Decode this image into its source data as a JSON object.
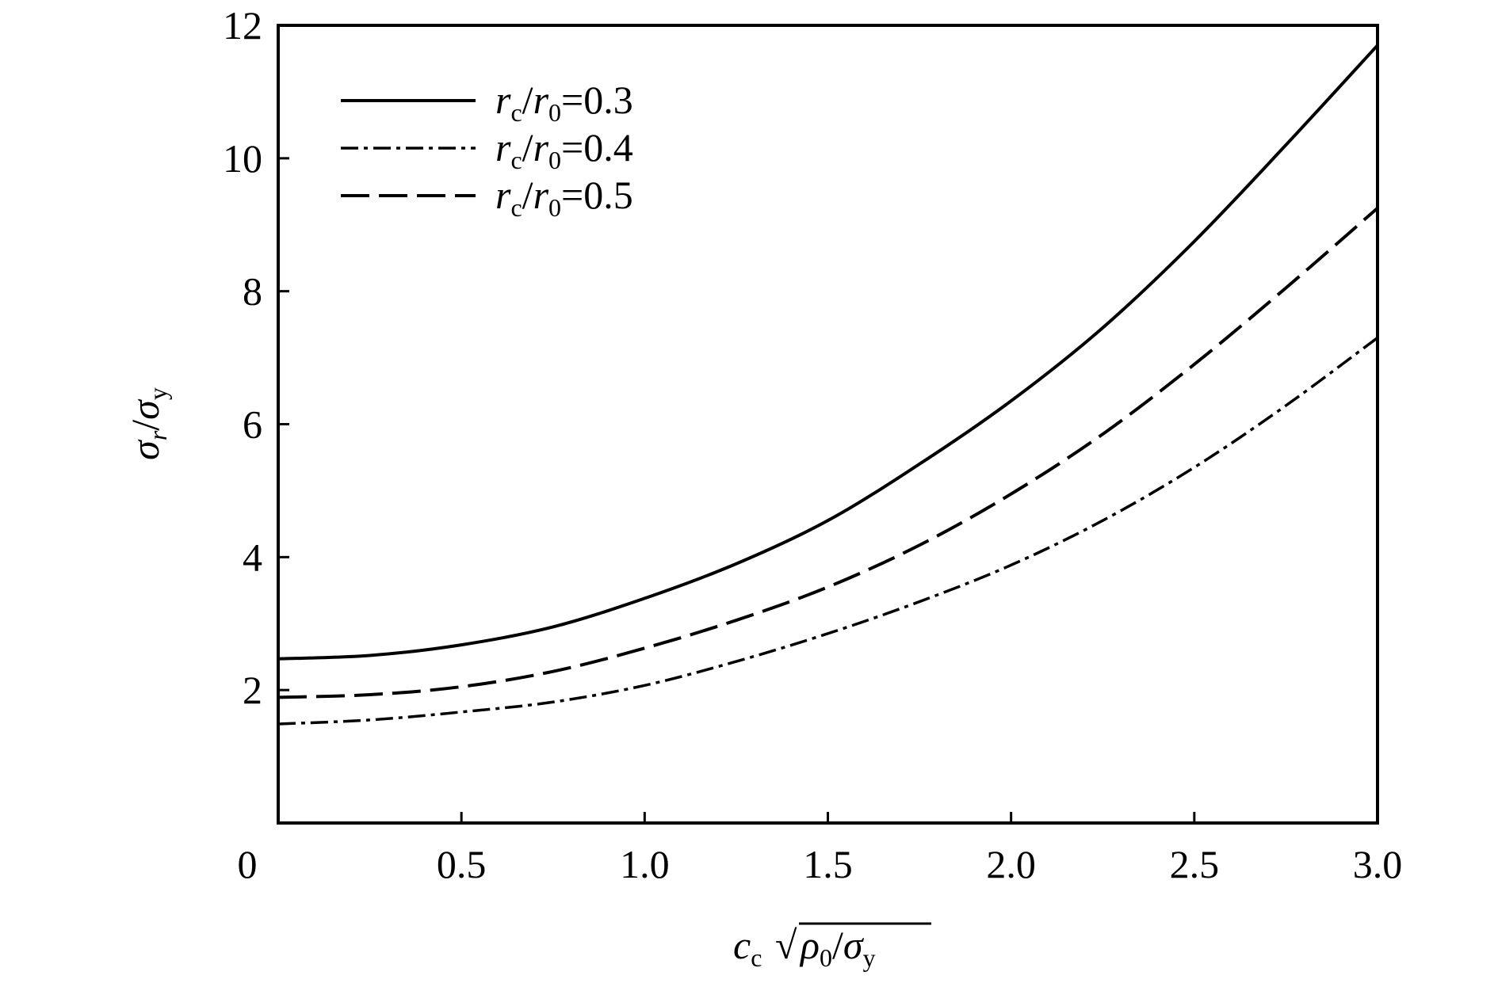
{
  "chart_data": {
    "type": "line",
    "title": "",
    "xlabel": {
      "c": "c",
      "c_sub": "c",
      "rho": "ρ",
      "rho_sub": "0",
      "sigma": "σ",
      "sigma_sub": "y"
    },
    "ylabel": {
      "sigma": "σ",
      "r": "r",
      "sigma_y": "σ",
      "y": "y"
    },
    "xlim": [
      0,
      3.0
    ],
    "ylim": [
      0,
      12
    ],
    "x_ticks": [
      0.5,
      1.0,
      1.5,
      2.0,
      2.5,
      3.0
    ],
    "x_tick_labels": [
      "0.5",
      "1.0",
      "1.5",
      "2.0",
      "2.5",
      "3.0"
    ],
    "y_ticks": [
      2,
      4,
      6,
      8,
      10,
      12
    ],
    "y_tick_labels": [
      "2",
      "4",
      "6",
      "8",
      "10",
      "12"
    ],
    "origin_label": "0",
    "grid": false,
    "legend_position": "top-left",
    "x": [
      0,
      0.25,
      0.5,
      0.75,
      1.0,
      1.25,
      1.5,
      1.75,
      2.0,
      2.25,
      2.5,
      2.75,
      3.0
    ],
    "series": [
      {
        "r": "r",
        "c": "c",
        "r0": "r",
        "zero": "0",
        "eq": "=0.3",
        "style": "solid",
        "values": [
          2.47,
          2.52,
          2.68,
          2.95,
          3.38,
          3.9,
          4.55,
          5.4,
          6.35,
          7.45,
          8.75,
          10.2,
          11.7
        ]
      },
      {
        "r": "r",
        "c": "c",
        "r0": "r",
        "zero": "0",
        "eq": "=0.4",
        "style": "dashdot",
        "values": [
          1.49,
          1.55,
          1.67,
          1.82,
          2.07,
          2.43,
          2.85,
          3.33,
          3.88,
          4.55,
          5.35,
          6.28,
          7.3
        ]
      },
      {
        "r": "r",
        "c": "c",
        "r0": "r",
        "zero": "0",
        "eq": "=0.5",
        "style": "dashed",
        "values": [
          1.89,
          1.93,
          2.05,
          2.28,
          2.63,
          3.05,
          3.55,
          4.18,
          4.95,
          5.85,
          6.9,
          8.05,
          9.25
        ]
      }
    ]
  }
}
